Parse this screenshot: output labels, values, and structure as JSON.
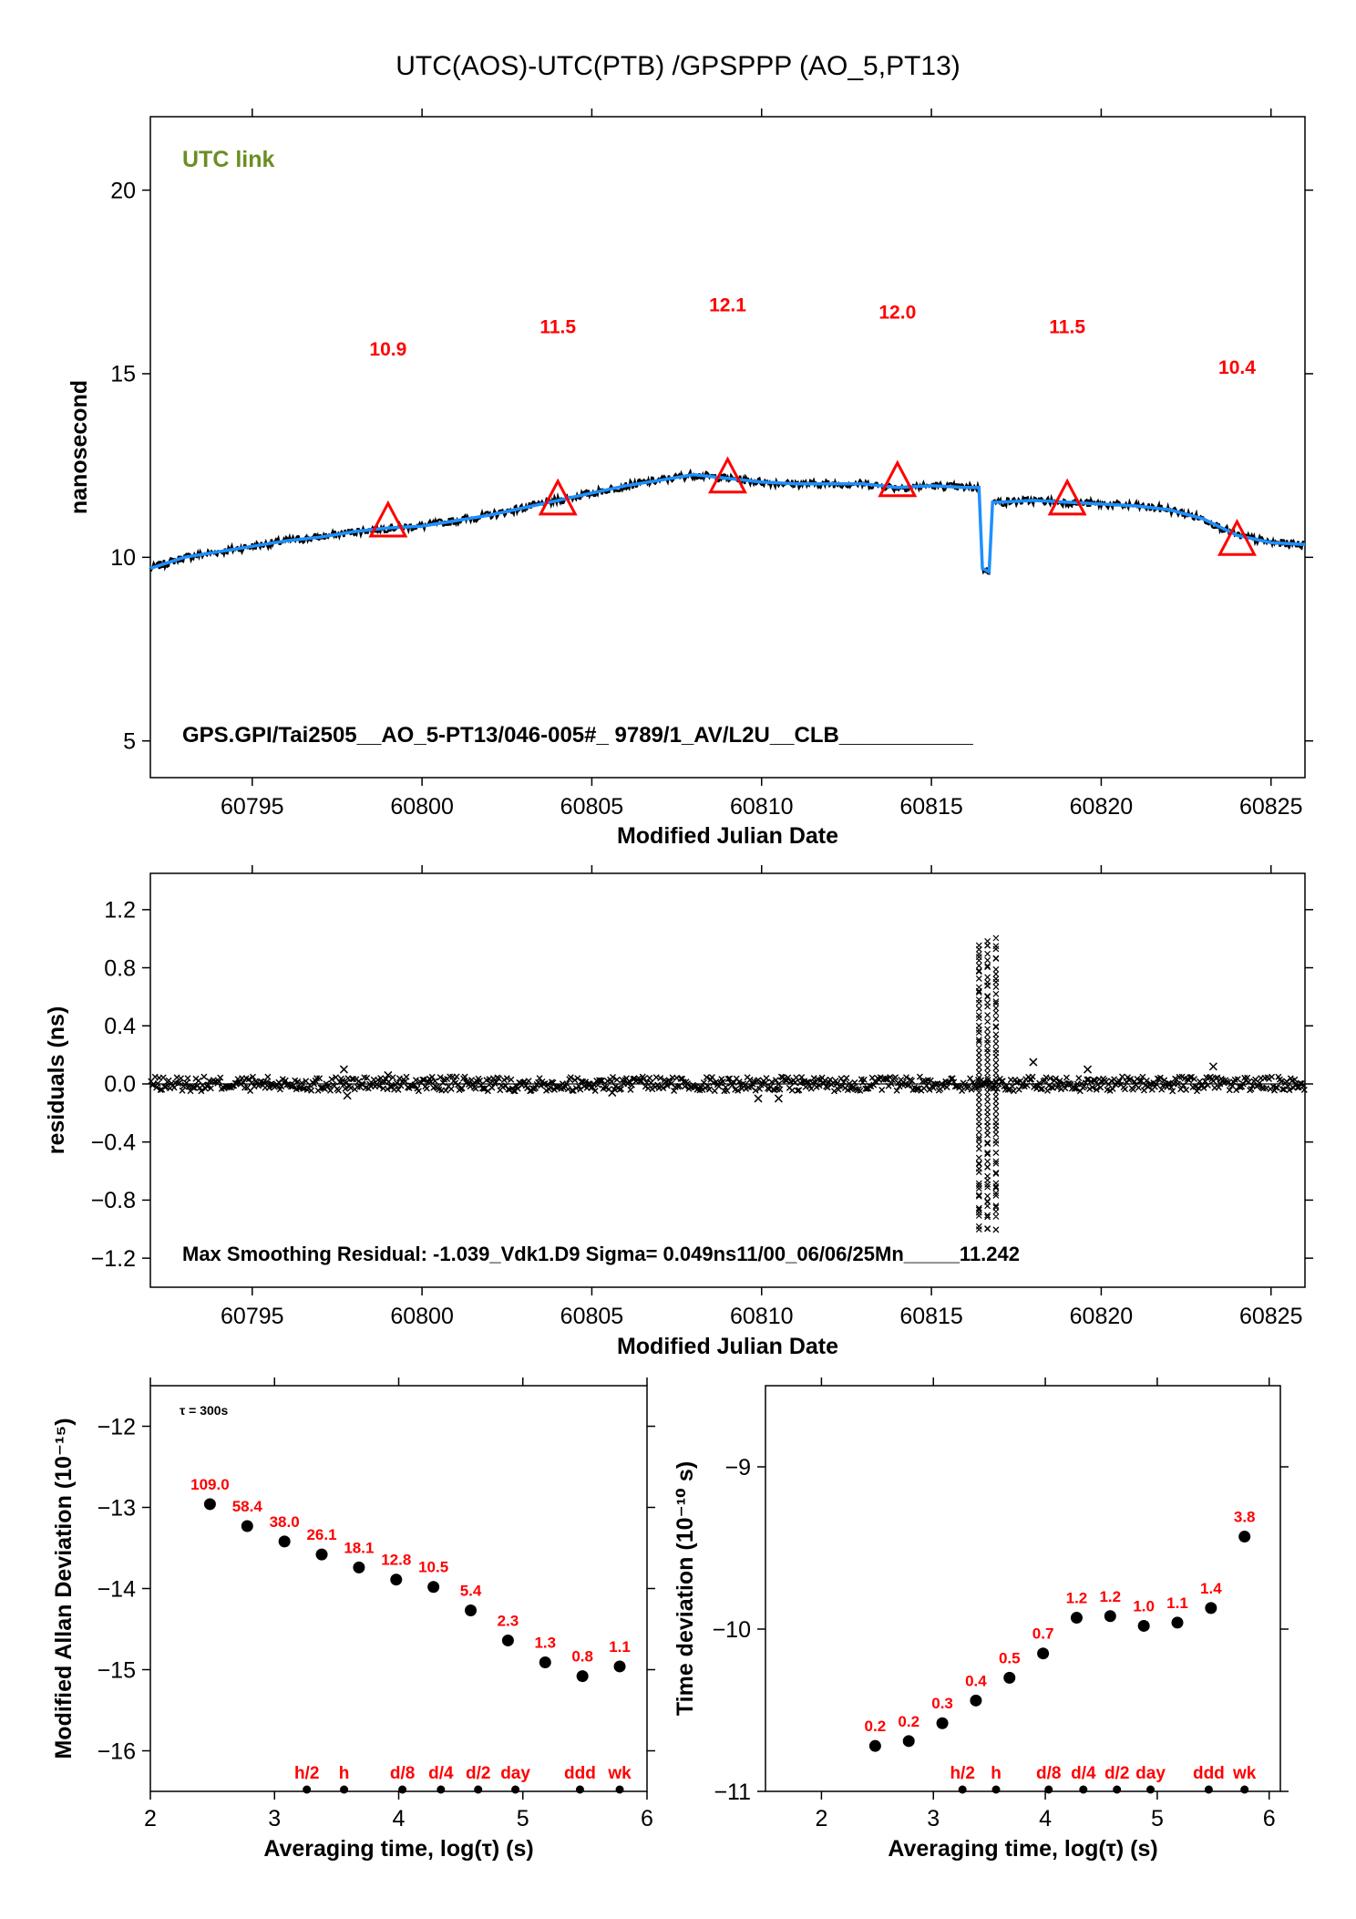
{
  "title": "UTC(AOS)-UTC(PTB)  /GPSPPP  (AO_5,PT13)",
  "colors": {
    "accent": "#ff0000",
    "series": "#1e90ff",
    "badge": "#6b8e23",
    "ink": "#000000"
  },
  "chart_data": [
    {
      "type": "line",
      "id": "clock-difference",
      "badge": "UTC link",
      "footer": "GPS.GPI/Tai2505__AO_5-PT13/046-005#_  9789/1_AV/L2U__CLB___________",
      "xlabel": "Modified Julian Date",
      "ylabel": "nanosecond",
      "xlim": [
        60792,
        60826
      ],
      "ylim": [
        4,
        22
      ],
      "xticks": [
        60795,
        60800,
        60805,
        60810,
        60815,
        60820,
        60825
      ],
      "yticks": [
        5,
        10,
        15,
        20
      ],
      "series": [
        {
          "x": [
            60792.0,
            60793.0,
            60794.0,
            60795.0,
            60796.0,
            60797.0,
            60798.0,
            60799.0,
            60800.0,
            60801.0,
            60802.0,
            60803.0,
            60804.0,
            60805.0,
            60806.0,
            60807.0,
            60808.0,
            60809.0,
            60810.0,
            60811.0,
            60812.0,
            60813.0,
            60814.0,
            60815.0,
            60816.0,
            60816.4,
            60816.5,
            60816.7,
            60816.8,
            60817.0,
            60818.0,
            60819.0,
            60820.0,
            60821.0,
            60822.0,
            60823.0,
            60824.0,
            60825.0,
            60826.0
          ],
          "y": [
            9.7,
            10.0,
            10.15,
            10.3,
            10.45,
            10.55,
            10.7,
            10.8,
            10.85,
            11.0,
            11.15,
            11.35,
            11.55,
            11.75,
            11.95,
            12.1,
            12.25,
            12.15,
            12.05,
            12.0,
            12.0,
            12.0,
            11.9,
            11.95,
            11.9,
            11.9,
            9.7,
            9.6,
            11.5,
            11.5,
            11.55,
            11.5,
            11.45,
            11.4,
            11.3,
            11.05,
            10.6,
            10.4,
            10.35
          ]
        }
      ],
      "markers": [
        {
          "x": 60799,
          "y": 11.0,
          "label": "10.9"
        },
        {
          "x": 60804,
          "y": 11.6,
          "label": "11.5"
        },
        {
          "x": 60809,
          "y": 12.2,
          "label": "12.1"
        },
        {
          "x": 60814,
          "y": 12.1,
          "label": "12.0"
        },
        {
          "x": 60819,
          "y": 11.6,
          "label": "11.5"
        },
        {
          "x": 60824,
          "y": 10.5,
          "label": "10.4"
        }
      ],
      "marker_label_y": [
        15.7,
        16.3,
        16.9,
        16.7,
        16.3,
        15.2
      ]
    },
    {
      "type": "scatter",
      "id": "residuals",
      "footer": "Max Smoothing Residual: -1.039_Vdk1.D9  Sigma= 0.049ns11/00_06/06/25Mn_____11.242",
      "xlabel": "Modified Julian Date",
      "ylabel": "residuals (ns)",
      "xlim": [
        60792,
        60826
      ],
      "ylim": [
        -1.4,
        1.45
      ],
      "xticks": [
        60795,
        60800,
        60805,
        60810,
        60815,
        60820,
        60825
      ],
      "yticks": [
        1.2,
        0.8,
        0.4,
        0.0,
        -0.4,
        -0.8,
        -1.2
      ],
      "ytick_labels": [
        "1.2",
        "0.8",
        "0.4",
        "0.0",
        "−0.4",
        "−0.8",
        "−1.2"
      ],
      "band_halfwidth": 0.05,
      "spike": {
        "x": [
          60816.4,
          60816.9
        ],
        "ymin": -1.039,
        "ymax": 1.05
      },
      "outliers": [
        {
          "x": 60797.7,
          "y": 0.1
        },
        {
          "x": 60797.8,
          "y": -0.08
        },
        {
          "x": 60799.0,
          "y": 0.06
        },
        {
          "x": 60805.6,
          "y": -0.06
        },
        {
          "x": 60809.9,
          "y": -0.1
        },
        {
          "x": 60810.5,
          "y": -0.1
        },
        {
          "x": 60818.0,
          "y": 0.15
        },
        {
          "x": 60819.6,
          "y": 0.1
        },
        {
          "x": 60823.3,
          "y": 0.12
        }
      ]
    },
    {
      "type": "scatter",
      "id": "modified-allan-deviation",
      "note": "τ = 300s",
      "xlabel": "Averaging time, log(τ) (s)",
      "ylabel": "Modified Allan Deviation (10⁻¹⁵)",
      "xlim": [
        2,
        6
      ],
      "ylim": [
        -16.5,
        -11.5
      ],
      "xticks": [
        2,
        3,
        4,
        5,
        6
      ],
      "yticks": [
        -12,
        -13,
        -14,
        -15,
        -16
      ],
      "ytick_labels": [
        "−12",
        "−13",
        "−14",
        "−15",
        "−16"
      ],
      "x": [
        2.48,
        2.78,
        3.08,
        3.38,
        3.68,
        3.98,
        4.28,
        4.58,
        4.88,
        5.18,
        5.48,
        5.78
      ],
      "y": [
        -12.96,
        -13.23,
        -13.42,
        -13.58,
        -13.74,
        -13.89,
        -13.98,
        -14.27,
        -14.64,
        -14.91,
        -15.08,
        -14.96
      ],
      "labels": [
        "109.0",
        "58.4",
        "38.0",
        "26.1",
        "18.1",
        "12.8",
        "10.5",
        "5.4",
        "2.3",
        "1.3",
        "0.8",
        "1.1"
      ],
      "time_markers": [
        {
          "x": 3.26,
          "label": "h/2"
        },
        {
          "x": 3.56,
          "label": "h"
        },
        {
          "x": 4.03,
          "label": "d/8"
        },
        {
          "x": 4.34,
          "label": "d/4"
        },
        {
          "x": 4.64,
          "label": "d/2"
        },
        {
          "x": 4.94,
          "label": "day"
        },
        {
          "x": 5.46,
          "label": "ddd"
        },
        {
          "x": 5.78,
          "label": "wk"
        }
      ]
    },
    {
      "type": "scatter",
      "id": "time-deviation",
      "xlabel": "Averaging time, log(τ) (s)",
      "ylabel": "Time deviation (10⁻¹⁰ s)",
      "xlim": [
        1.5,
        6.1
      ],
      "ylim": [
        -11,
        -8.5
      ],
      "xticks": [
        2,
        3,
        4,
        5,
        6
      ],
      "yticks": [
        -9,
        -10,
        -11
      ],
      "ytick_labels": [
        "−9",
        "−10",
        "−11"
      ],
      "x": [
        2.48,
        2.78,
        3.08,
        3.38,
        3.68,
        3.98,
        4.28,
        4.58,
        4.88,
        5.18,
        5.48,
        5.78
      ],
      "y": [
        -10.72,
        -10.69,
        -10.58,
        -10.44,
        -10.3,
        -10.15,
        -9.93,
        -9.92,
        -9.98,
        -9.96,
        -9.87,
        -9.43
      ],
      "labels": [
        "0.2",
        "0.2",
        "0.3",
        "0.4",
        "0.5",
        "0.7",
        "1.2",
        "1.2",
        "1.0",
        "1.1",
        "1.4",
        "3.8"
      ],
      "time_markers": [
        {
          "x": 3.26,
          "label": "h/2"
        },
        {
          "x": 3.56,
          "label": "h"
        },
        {
          "x": 4.03,
          "label": "d/8"
        },
        {
          "x": 4.34,
          "label": "d/4"
        },
        {
          "x": 4.64,
          "label": "d/2"
        },
        {
          "x": 4.94,
          "label": "day"
        },
        {
          "x": 5.46,
          "label": "ddd"
        },
        {
          "x": 5.78,
          "label": "wk"
        }
      ]
    }
  ]
}
